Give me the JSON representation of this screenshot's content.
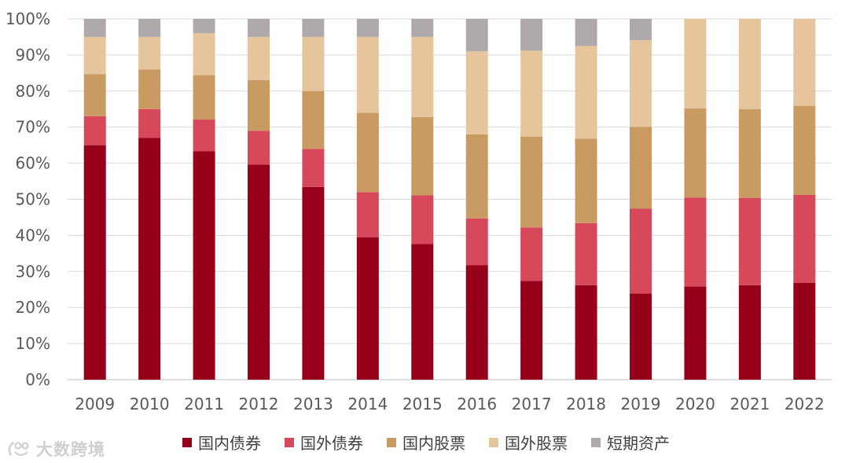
{
  "chart_data": {
    "type": "bar",
    "stacked": true,
    "categories": [
      "2009",
      "2010",
      "2011",
      "2012",
      "2013",
      "2014",
      "2015",
      "2016",
      "2017",
      "2018",
      "2019",
      "2020",
      "2021",
      "2022"
    ],
    "series": [
      {
        "name": "国内债券",
        "color": "#960018",
        "values": [
          65,
          67,
          63.3,
          59.6,
          53.4,
          39.5,
          37.6,
          31.7,
          27.4,
          26.2,
          23.9,
          25.8,
          26.2,
          26.8
        ]
      },
      {
        "name": "国外债券",
        "color": "#D8485B",
        "values": [
          8,
          8,
          8.8,
          9.4,
          10.6,
          12.5,
          13.5,
          13.0,
          14.8,
          17.2,
          23.5,
          24.7,
          24.2,
          24.4
        ]
      },
      {
        "name": "国内股票",
        "color": "#C99B63",
        "values": [
          11.7,
          11,
          12.3,
          14,
          16,
          22,
          21.7,
          23.3,
          25.2,
          23.4,
          22.7,
          24.7,
          24.6,
          24.7
        ]
      },
      {
        "name": "国外股票",
        "color": "#E6C59C",
        "values": [
          10.3,
          9,
          11.6,
          12,
          15,
          21,
          22.2,
          23.0,
          23.8,
          25.7,
          24,
          24.8,
          25,
          24.1
        ]
      },
      {
        "name": "短期资产",
        "color": "#AFA9AB",
        "values": [
          5,
          5,
          4,
          5,
          5,
          5,
          5,
          9.0,
          8.8,
          7.5,
          5.9,
          0,
          0,
          0
        ]
      }
    ],
    "ylim": [
      0,
      100
    ],
    "yticks": [
      "0%",
      "10%",
      "20%",
      "30%",
      "40%",
      "50%",
      "60%",
      "70%",
      "80%",
      "90%",
      "100%"
    ],
    "grid": true,
    "legend_position": "bottom"
  },
  "watermark": {
    "text": "大数跨境"
  }
}
